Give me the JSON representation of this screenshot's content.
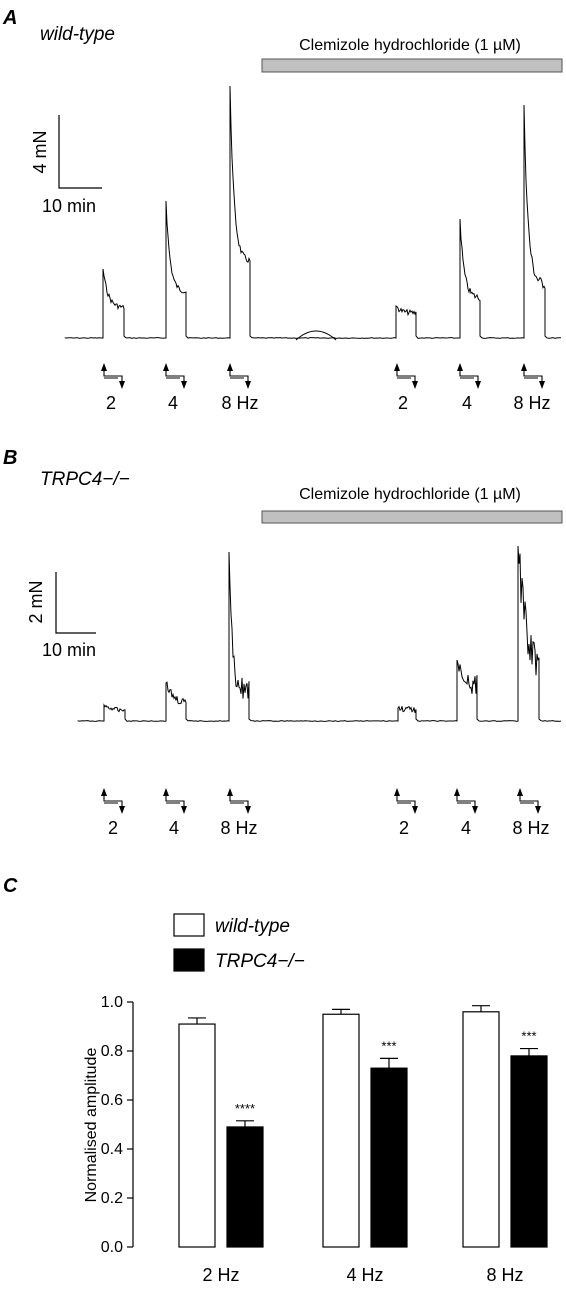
{
  "panels": [
    {
      "label": "A",
      "genotype": "wild-type",
      "drug_label": "Clemizole hydrochloride (1 µM)",
      "scale_y": "4 mN",
      "scale_x": "10 min",
      "stim_labels": [
        "2",
        "4",
        "8 Hz",
        "2",
        "4",
        "8 Hz"
      ]
    },
    {
      "label": "B",
      "genotype": "TRPC4−/−",
      "drug_label": "Clemizole hydrochloride (1 µM)",
      "scale_y": "2 mN",
      "scale_x": "10 min",
      "stim_labels": [
        "2",
        "4",
        "8 Hz",
        "2",
        "4",
        "8 Hz"
      ]
    }
  ],
  "panel_c": {
    "label": "C"
  },
  "colors": {
    "bar_wildtype": "#ffffff",
    "bar_trpc4": "#000000",
    "drug_bar": "#c0c0c0",
    "trace": "#000000"
  },
  "chart_data": {
    "type": "bar",
    "categories": [
      "2 Hz",
      "4 Hz",
      "8 Hz"
    ],
    "series": [
      {
        "name": "wild-type",
        "values": [
          0.91,
          0.95,
          0.96
        ],
        "errors": [
          0.025,
          0.02,
          0.025
        ],
        "significance": [
          "",
          "",
          ""
        ]
      },
      {
        "name": "TRPC4−/−",
        "values": [
          0.49,
          0.73,
          0.78
        ],
        "errors": [
          0.025,
          0.04,
          0.03
        ],
        "significance": [
          "****",
          "***",
          "***"
        ]
      }
    ],
    "ylabel": "Normalised amplitude",
    "xlabel": "",
    "ylim": [
      0,
      1.0
    ],
    "yticks": [
      "0.0",
      "0.2",
      "0.4",
      "0.6",
      "0.8",
      "1.0"
    ],
    "legend_position": "top-left"
  }
}
